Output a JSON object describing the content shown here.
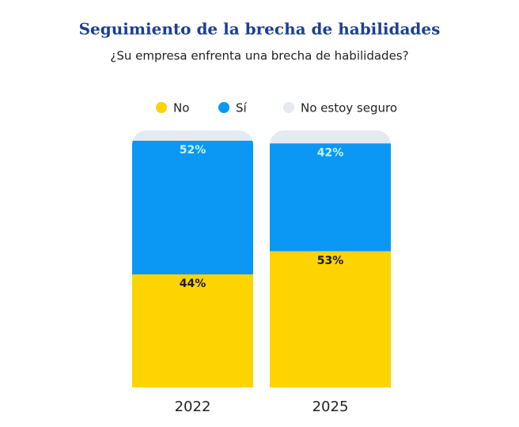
{
  "chart_data": {
    "type": "stacked_bar_100",
    "title": "Seguimiento de la brecha de habilidades",
    "subtitle": "¿Su empresa enfrenta una brecha de habilidades?",
    "categories": [
      "2022",
      "2025"
    ],
    "series": [
      {
        "name": "No",
        "color": "#fdd300",
        "label_color": "#1a1a1a",
        "values": [
          44,
          53
        ],
        "value_labels": [
          "44%",
          "53%"
        ]
      },
      {
        "name": "Sí",
        "color": "#0b97f4",
        "label_color": "#c4f4ff",
        "values": [
          52,
          42
        ],
        "value_labels": [
          "52%",
          "42%"
        ]
      },
      {
        "name": "No estoy seguro",
        "color": "#e4eaf0",
        "values": [
          4,
          5
        ]
      }
    ]
  }
}
